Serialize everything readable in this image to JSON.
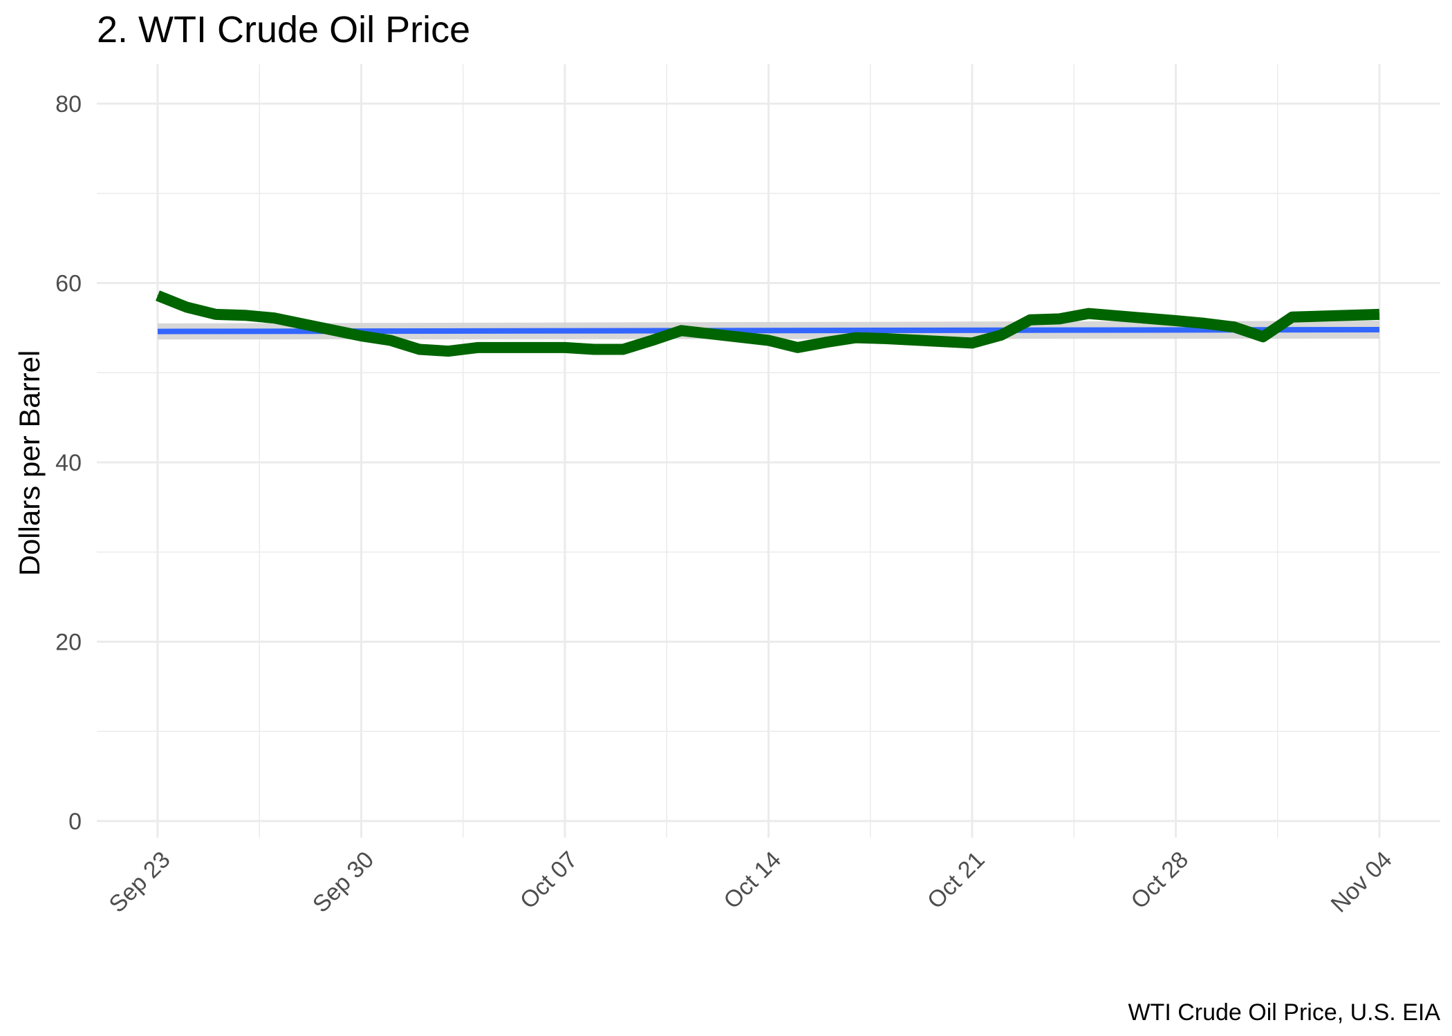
{
  "chart_data": {
    "type": "line",
    "title": "2. WTI Crude Oil Price",
    "ylabel": "Dollars per Barrel",
    "xlabel": "",
    "caption": "WTI Crude Oil Price, U.S. EIA",
    "xlim": [
      "2019-09-23",
      "2019-11-04"
    ],
    "ylim": [
      0,
      80
    ],
    "x_ticks": [
      {
        "date": "2019-09-23",
        "label": "Sep 23"
      },
      {
        "date": "2019-09-30",
        "label": "Sep 30"
      },
      {
        "date": "2019-10-07",
        "label": "Oct 07"
      },
      {
        "date": "2019-10-14",
        "label": "Oct 14"
      },
      {
        "date": "2019-10-21",
        "label": "Oct 21"
      },
      {
        "date": "2019-10-28",
        "label": "Oct 28"
      },
      {
        "date": "2019-11-04",
        "label": "Nov 04"
      }
    ],
    "y_ticks": [
      0,
      20,
      40,
      60,
      80
    ],
    "grid": true,
    "series": [
      {
        "color": "#006400",
        "points": [
          {
            "x": "2019-09-23",
            "y": 58.6
          },
          {
            "x": "2019-09-24",
            "y": 57.3
          },
          {
            "x": "2019-09-25",
            "y": 56.5
          },
          {
            "x": "2019-09-26",
            "y": 56.4
          },
          {
            "x": "2019-09-27",
            "y": 56.1
          },
          {
            "x": "2019-09-30",
            "y": 54.1
          },
          {
            "x": "2019-10-01",
            "y": 53.6
          },
          {
            "x": "2019-10-02",
            "y": 52.6
          },
          {
            "x": "2019-10-03",
            "y": 52.4
          },
          {
            "x": "2019-10-04",
            "y": 52.8
          },
          {
            "x": "2019-10-07",
            "y": 52.8
          },
          {
            "x": "2019-10-08",
            "y": 52.6
          },
          {
            "x": "2019-10-09",
            "y": 52.6
          },
          {
            "x": "2019-10-10",
            "y": 53.6
          },
          {
            "x": "2019-10-11",
            "y": 54.7
          },
          {
            "x": "2019-10-14",
            "y": 53.6
          },
          {
            "x": "2019-10-15",
            "y": 52.8
          },
          {
            "x": "2019-10-16",
            "y": 53.4
          },
          {
            "x": "2019-10-17",
            "y": 53.9
          },
          {
            "x": "2019-10-18",
            "y": 53.8
          },
          {
            "x": "2019-10-21",
            "y": 53.3
          },
          {
            "x": "2019-10-22",
            "y": 54.2
          },
          {
            "x": "2019-10-23",
            "y": 55.9
          },
          {
            "x": "2019-10-24",
            "y": 56.0
          },
          {
            "x": "2019-10-25",
            "y": 56.6
          },
          {
            "x": "2019-10-28",
            "y": 55.8
          },
          {
            "x": "2019-10-29",
            "y": 55.5
          },
          {
            "x": "2019-10-30",
            "y": 55.1
          },
          {
            "x": "2019-10-31",
            "y": 54.0
          },
          {
            "x": "2019-11-01",
            "y": 56.2
          },
          {
            "x": "2019-11-04",
            "y": 56.5
          }
        ]
      }
    ],
    "trend": {
      "color": "#3366ff",
      "band_color": "#d3d3d3",
      "start": {
        "x": "2019-09-23",
        "y": 54.6,
        "lower": 53.7,
        "upper": 55.5
      },
      "end": {
        "x": "2019-11-04",
        "y": 54.8,
        "lower": 53.8,
        "upper": 55.8
      }
    }
  }
}
